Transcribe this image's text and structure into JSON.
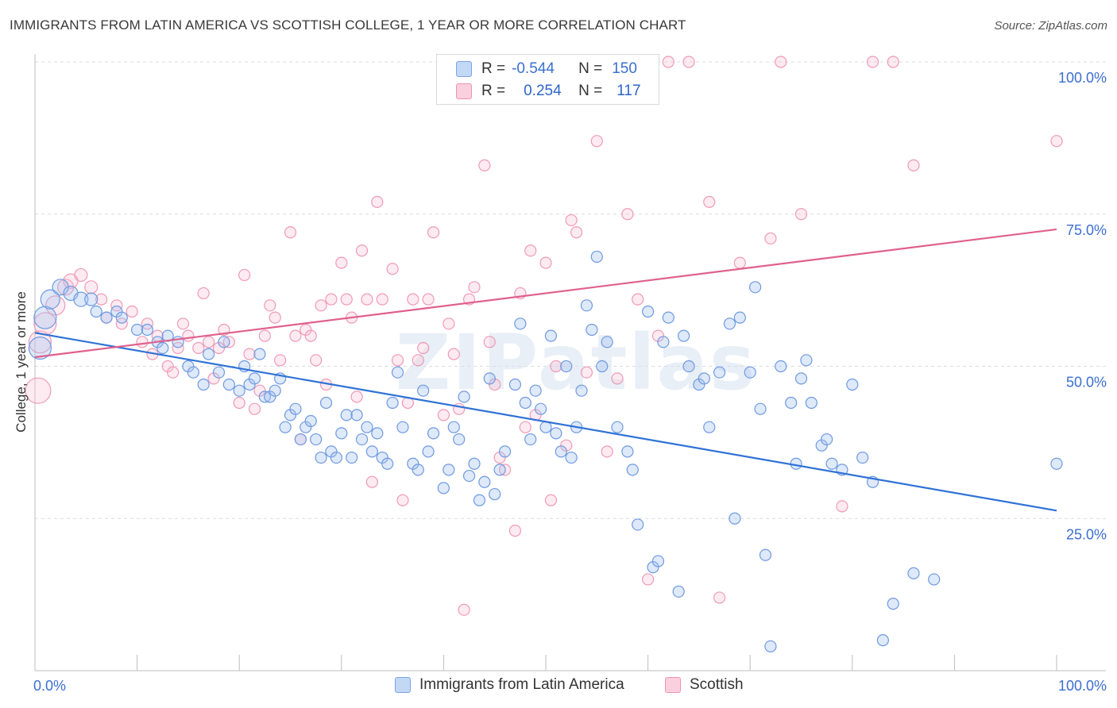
{
  "title": "IMMIGRANTS FROM LATIN AMERICA VS SCOTTISH COLLEGE, 1 YEAR OR MORE CORRELATION CHART",
  "source": "Source: ZipAtlas.com",
  "watermark": "ZIPatlas",
  "stats": [
    {
      "r_label": "R =",
      "r_value": "-0.544",
      "n_label": "N =",
      "n_value": "150",
      "color": "#7aa3e8"
    },
    {
      "r_label": "R =",
      "r_value": "0.254",
      "n_label": "N =",
      "n_value": "117",
      "color": "#f093b0"
    }
  ],
  "legend": [
    {
      "label": "Immigrants from Latin America",
      "color": "#7aa3e8"
    },
    {
      "label": "Scottish",
      "color": "#f093b0"
    }
  ],
  "chart_data": {
    "type": "scatter",
    "title": "IMMIGRANTS FROM LATIN AMERICA VS SCOTTISH COLLEGE, 1 YEAR OR MORE CORRELATION CHART",
    "xlabel": "",
    "ylabel": "College, 1 year or more",
    "x_tick_labels": [
      "0.0%",
      "100.0%"
    ],
    "y_tick_labels": [
      "25.0%",
      "50.0%",
      "75.0%",
      "100.0%"
    ],
    "y_ticks": [
      25,
      50,
      75,
      100
    ],
    "xlim": [
      0,
      100
    ],
    "ylim": [
      0,
      100
    ],
    "grid": true,
    "legend_position": "bottom",
    "series": [
      {
        "name": "Immigrants from Latin America",
        "color": "#4a86e0",
        "trend": {
          "x": [
            0,
            100
          ],
          "y": [
            55.5,
            26.3
          ]
        },
        "points": [
          [
            0.5,
            53,
            14
          ],
          [
            1,
            58,
            14
          ],
          [
            1.5,
            61,
            12
          ],
          [
            2.5,
            63,
            10
          ],
          [
            3.5,
            62,
            9
          ],
          [
            4.5,
            61,
            9
          ],
          [
            5.5,
            61,
            8
          ],
          [
            6,
            59,
            7
          ],
          [
            7,
            58,
            7
          ],
          [
            8,
            59,
            7
          ],
          [
            8.5,
            58,
            7
          ],
          [
            10,
            56,
            7
          ],
          [
            11,
            56,
            7
          ],
          [
            12,
            54,
            7
          ],
          [
            12.5,
            53,
            7
          ],
          [
            13,
            55,
            7
          ],
          [
            14,
            54,
            7
          ],
          [
            15,
            50,
            7
          ],
          [
            15.5,
            49,
            7
          ],
          [
            16.5,
            47,
            7
          ],
          [
            17,
            52,
            7
          ],
          [
            18,
            49,
            7
          ],
          [
            18.5,
            54,
            7
          ],
          [
            19,
            47,
            7
          ],
          [
            20,
            46,
            7
          ],
          [
            20.5,
            50,
            7
          ],
          [
            21,
            47,
            7
          ],
          [
            21.5,
            48,
            7
          ],
          [
            22,
            52,
            7
          ],
          [
            22.5,
            45,
            7
          ],
          [
            23,
            45,
            7
          ],
          [
            23.5,
            46,
            7
          ],
          [
            24,
            48,
            7
          ],
          [
            24.5,
            40,
            7
          ],
          [
            25,
            42,
            7
          ],
          [
            25.5,
            43,
            7
          ],
          [
            26,
            38,
            7
          ],
          [
            26.5,
            40,
            7
          ],
          [
            27,
            41,
            7
          ],
          [
            27.5,
            38,
            7
          ],
          [
            28,
            35,
            7
          ],
          [
            28.5,
            44,
            7
          ],
          [
            29,
            36,
            7
          ],
          [
            29.5,
            35,
            7
          ],
          [
            30,
            39,
            7
          ],
          [
            30.5,
            42,
            7
          ],
          [
            31,
            35,
            7
          ],
          [
            31.5,
            42,
            7
          ],
          [
            32,
            38,
            7
          ],
          [
            32.5,
            40,
            7
          ],
          [
            33,
            36,
            7
          ],
          [
            33.5,
            39,
            7
          ],
          [
            34,
            35,
            7
          ],
          [
            34.5,
            34,
            7
          ],
          [
            35,
            44,
            7
          ],
          [
            35.5,
            49,
            7
          ],
          [
            36,
            40,
            7
          ],
          [
            37,
            34,
            7
          ],
          [
            37.5,
            33,
            7
          ],
          [
            38,
            46,
            7
          ],
          [
            38.5,
            36,
            7
          ],
          [
            39,
            39,
            7
          ],
          [
            40,
            30,
            7
          ],
          [
            40.5,
            33,
            7
          ],
          [
            41,
            40,
            7
          ],
          [
            41.5,
            38,
            7
          ],
          [
            42,
            45,
            7
          ],
          [
            42.5,
            32,
            7
          ],
          [
            43,
            34,
            7
          ],
          [
            43.5,
            28,
            7
          ],
          [
            44,
            31,
            7
          ],
          [
            44.5,
            48,
            7
          ],
          [
            45,
            29,
            7
          ],
          [
            45.5,
            33,
            7
          ],
          [
            46,
            36,
            7
          ],
          [
            47,
            47,
            7
          ],
          [
            47.5,
            57,
            7
          ],
          [
            48,
            44,
            7
          ],
          [
            48.5,
            38,
            7
          ],
          [
            49,
            46,
            7
          ],
          [
            49.5,
            43,
            7
          ],
          [
            50,
            40,
            7
          ],
          [
            50.5,
            55,
            7
          ],
          [
            51,
            39,
            7
          ],
          [
            51.5,
            36,
            7
          ],
          [
            52,
            50,
            7
          ],
          [
            52.5,
            35,
            7
          ],
          [
            53,
            40,
            7
          ],
          [
            53.5,
            46,
            7
          ],
          [
            54,
            60,
            7
          ],
          [
            54.5,
            56,
            7
          ],
          [
            55,
            68,
            7
          ],
          [
            55.5,
            50,
            7
          ],
          [
            56,
            54,
            7
          ],
          [
            57,
            40,
            7
          ],
          [
            58,
            36,
            7
          ],
          [
            58.5,
            33,
            7
          ],
          [
            59,
            24,
            7
          ],
          [
            60,
            59,
            7
          ],
          [
            60.5,
            17,
            7
          ],
          [
            61,
            18,
            7
          ],
          [
            61.5,
            54,
            7
          ],
          [
            62,
            58,
            7
          ],
          [
            63,
            13,
            7
          ],
          [
            63.5,
            55,
            7
          ],
          [
            64,
            50,
            7
          ],
          [
            65,
            47,
            7
          ],
          [
            65.5,
            48,
            7
          ],
          [
            66,
            40,
            7
          ],
          [
            67,
            49,
            7
          ],
          [
            68,
            57,
            7
          ],
          [
            68.5,
            25,
            7
          ],
          [
            69,
            58,
            7
          ],
          [
            70,
            49,
            7
          ],
          [
            70.5,
            63,
            7
          ],
          [
            71,
            43,
            7
          ],
          [
            71.5,
            19,
            7
          ],
          [
            72,
            4,
            7
          ],
          [
            73,
            50,
            7
          ],
          [
            74,
            44,
            7
          ],
          [
            74.5,
            34,
            7
          ],
          [
            75,
            48,
            7
          ],
          [
            75.5,
            51,
            7
          ],
          [
            76,
            44,
            7
          ],
          [
            77,
            37,
            7
          ],
          [
            77.5,
            38,
            7
          ],
          [
            78,
            34,
            7
          ],
          [
            79,
            33,
            7
          ],
          [
            80,
            47,
            7
          ],
          [
            81,
            35,
            7
          ],
          [
            82,
            31,
            7
          ],
          [
            83,
            5,
            7
          ],
          [
            84,
            11,
            7
          ],
          [
            86,
            16,
            7
          ],
          [
            88,
            15,
            7
          ],
          [
            100,
            34,
            7
          ]
        ]
      },
      {
        "name": "Scottish",
        "color": "#e8608f",
        "trend": {
          "x": [
            0,
            100
          ],
          "y": [
            51.5,
            72.5
          ]
        },
        "points": [
          [
            0.3,
            46,
            16
          ],
          [
            0.5,
            54,
            14
          ],
          [
            1,
            57,
            14
          ],
          [
            2,
            60,
            12
          ],
          [
            3,
            63,
            10
          ],
          [
            3.5,
            64,
            9
          ],
          [
            4.5,
            65,
            8
          ],
          [
            5.5,
            63,
            8
          ],
          [
            6.5,
            61,
            7
          ],
          [
            7,
            58,
            7
          ],
          [
            8,
            60,
            7
          ],
          [
            8.5,
            57,
            7
          ],
          [
            9.5,
            59,
            7
          ],
          [
            10.5,
            54,
            7
          ],
          [
            11,
            57,
            7
          ],
          [
            11.5,
            52,
            7
          ],
          [
            12,
            55,
            7
          ],
          [
            13,
            50,
            7
          ],
          [
            13.5,
            49,
            7
          ],
          [
            14,
            53,
            7
          ],
          [
            14.5,
            57,
            7
          ],
          [
            15,
            55,
            7
          ],
          [
            16,
            53,
            7
          ],
          [
            16.5,
            62,
            7
          ],
          [
            17,
            54,
            7
          ],
          [
            17.5,
            48,
            7
          ],
          [
            18,
            53,
            7
          ],
          [
            18.5,
            56,
            7
          ],
          [
            19,
            54,
            7
          ],
          [
            20,
            44,
            7
          ],
          [
            20.5,
            65,
            7
          ],
          [
            21,
            52,
            7
          ],
          [
            21.5,
            43,
            7
          ],
          [
            22,
            46,
            7
          ],
          [
            22.5,
            55,
            7
          ],
          [
            23,
            60,
            7
          ],
          [
            23.5,
            58,
            7
          ],
          [
            24,
            51,
            7
          ],
          [
            25,
            72,
            7
          ],
          [
            25.5,
            55,
            7
          ],
          [
            26,
            38,
            7
          ],
          [
            26.5,
            56,
            7
          ],
          [
            27,
            55,
            7
          ],
          [
            27.5,
            51,
            7
          ],
          [
            28,
            60,
            7
          ],
          [
            28.5,
            47,
            7
          ],
          [
            29,
            61,
            7
          ],
          [
            30,
            67,
            7
          ],
          [
            30.5,
            61,
            7
          ],
          [
            31,
            58,
            7
          ],
          [
            31.5,
            45,
            7
          ],
          [
            32,
            69,
            7
          ],
          [
            32.5,
            61,
            7
          ],
          [
            33,
            31,
            7
          ],
          [
            33.5,
            77,
            7
          ],
          [
            34,
            61,
            7
          ],
          [
            35,
            66,
            7
          ],
          [
            35.5,
            51,
            7
          ],
          [
            36,
            28,
            7
          ],
          [
            36.5,
            44,
            7
          ],
          [
            37,
            61,
            7
          ],
          [
            37.5,
            51,
            7
          ],
          [
            38,
            53,
            7
          ],
          [
            38.5,
            61,
            7
          ],
          [
            39,
            72,
            7
          ],
          [
            40,
            42,
            7
          ],
          [
            40.5,
            57,
            7
          ],
          [
            41,
            52,
            7
          ],
          [
            41.5,
            43,
            7
          ],
          [
            42,
            10,
            7
          ],
          [
            42.5,
            61,
            7
          ],
          [
            43,
            63,
            7
          ],
          [
            44,
            83,
            7
          ],
          [
            44.5,
            54,
            7
          ],
          [
            45,
            47,
            7
          ],
          [
            45.5,
            35,
            7
          ],
          [
            46,
            33,
            7
          ],
          [
            47,
            23,
            7
          ],
          [
            47.5,
            62,
            7
          ],
          [
            48,
            40,
            7
          ],
          [
            48.5,
            69,
            7
          ],
          [
            49,
            42,
            7
          ],
          [
            50,
            67,
            7
          ],
          [
            50.5,
            28,
            7
          ],
          [
            51,
            50,
            7
          ],
          [
            52,
            37,
            7
          ],
          [
            52.5,
            74,
            7
          ],
          [
            53,
            72,
            7
          ],
          [
            54,
            49,
            7
          ],
          [
            55,
            87,
            7
          ],
          [
            55.5,
            96,
            7
          ],
          [
            56,
            36,
            7
          ],
          [
            57,
            48,
            7
          ],
          [
            58,
            75,
            7
          ],
          [
            59,
            61,
            7
          ],
          [
            60,
            15,
            7
          ],
          [
            61,
            55,
            7
          ],
          [
            62,
            100,
            7
          ],
          [
            64,
            100,
            7
          ],
          [
            66,
            77,
            7
          ],
          [
            67,
            12,
            7
          ],
          [
            69,
            67,
            7
          ],
          [
            72,
            71,
            7
          ],
          [
            73,
            100,
            7
          ],
          [
            75,
            75,
            7
          ],
          [
            79,
            27,
            7
          ],
          [
            82,
            100,
            7
          ],
          [
            84,
            100,
            7
          ],
          [
            86,
            83,
            7
          ],
          [
            100,
            87,
            7
          ]
        ]
      }
    ]
  }
}
